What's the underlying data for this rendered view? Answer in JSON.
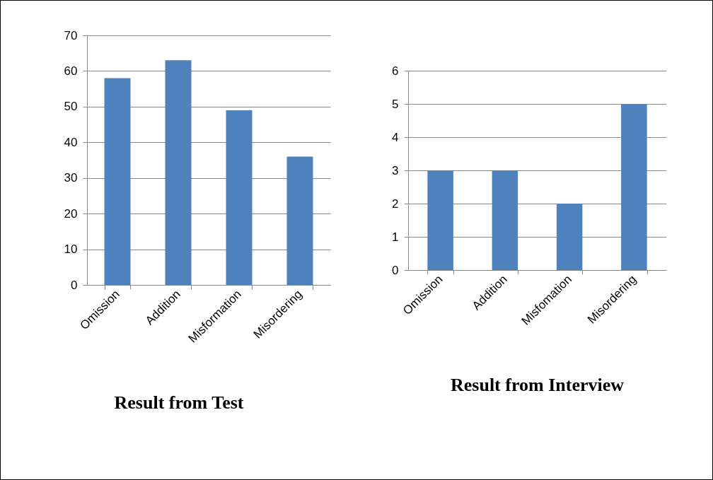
{
  "chart_data": [
    {
      "type": "bar",
      "title": "Result from Test",
      "categories": [
        "Omission",
        "Addition",
        "Misformation",
        "Misordering"
      ],
      "values": [
        58,
        63,
        49,
        36
      ],
      "color": "#4f81bd",
      "ylim": [
        0,
        70
      ],
      "yticks": [
        0,
        10,
        20,
        30,
        40,
        50,
        60,
        70
      ],
      "grid": "y"
    },
    {
      "type": "bar",
      "title": "Result from Interview",
      "categories": [
        "Omission",
        "Addition",
        "Misfomation",
        "Misordering"
      ],
      "values": [
        3,
        3,
        2,
        5
      ],
      "color": "#4f81bd",
      "ylim": [
        0,
        6
      ],
      "yticks": [
        0,
        1,
        2,
        3,
        4,
        5,
        6
      ],
      "grid": "y"
    }
  ]
}
